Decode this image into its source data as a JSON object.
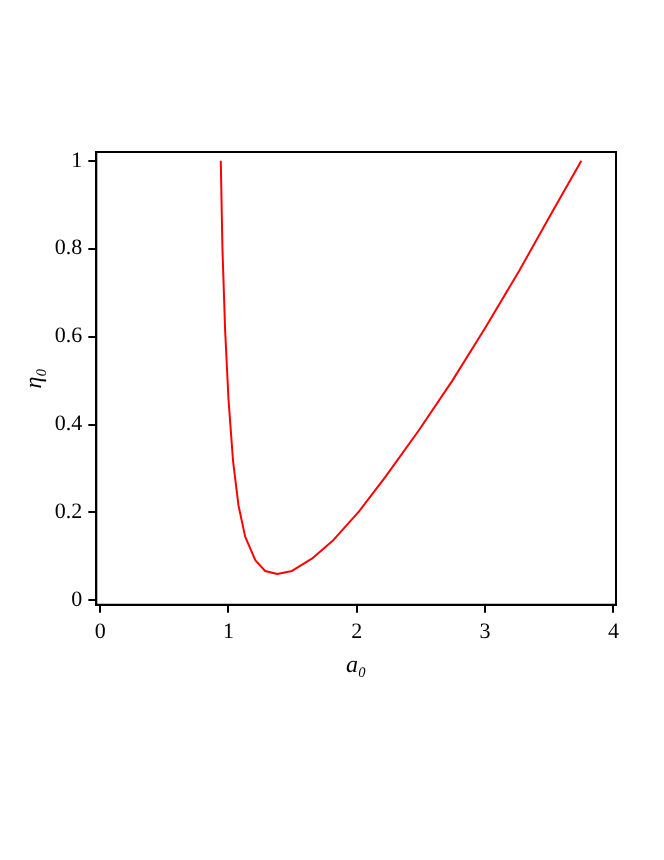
{
  "chart_data": {
    "type": "line",
    "xlabel": "a₀",
    "ylabel": "η₀",
    "xlim": [
      -0.03,
      4.02
    ],
    "ylim": [
      -0.01,
      1.02
    ],
    "xticks": [
      0,
      1,
      2,
      3,
      4
    ],
    "yticks": [
      0,
      0.2,
      0.4,
      0.6,
      0.8,
      1
    ],
    "grid": false,
    "legend": false,
    "marker": "none",
    "line_style": "solid",
    "series": [
      {
        "color": "#ff0000",
        "x": [
          0.94,
          0.953,
          0.974,
          1.0,
          1.036,
          1.078,
          1.13,
          1.21,
          1.286,
          1.38,
          1.495,
          1.65,
          1.81,
          2.016,
          2.22,
          2.484,
          2.745,
          3.005,
          3.266,
          3.526,
          3.75
        ],
        "values": [
          1.0,
          0.8,
          0.614,
          0.458,
          0.316,
          0.216,
          0.145,
          0.091,
          0.067,
          0.06,
          0.067,
          0.095,
          0.135,
          0.202,
          0.28,
          0.387,
          0.5,
          0.622,
          0.75,
          0.885,
          1.0
        ]
      }
    ]
  }
}
